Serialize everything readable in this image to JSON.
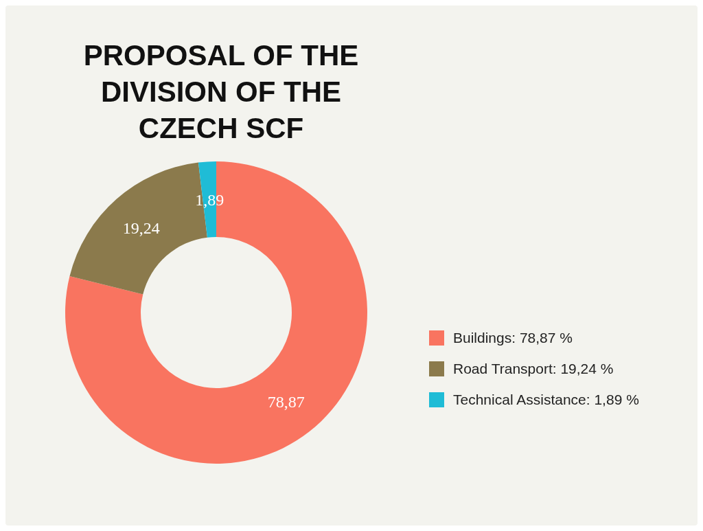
{
  "chart_data": {
    "type": "donut",
    "title": "PROPOSAL OF THE\nDIVISION OF THE\nCZECH SCF",
    "categories": [
      "Buildings: 78,87 %",
      "Road Transport: 19,24 %",
      "Technical Assistance: 1,89 %"
    ],
    "values": [
      78.87,
      19.24,
      1.89
    ],
    "colors": [
      "#f97460",
      "#8b7a4c",
      "#1fbcd6"
    ],
    "value_labels": [
      "78,87",
      "19,24",
      "1,89"
    ],
    "legend": "right"
  }
}
